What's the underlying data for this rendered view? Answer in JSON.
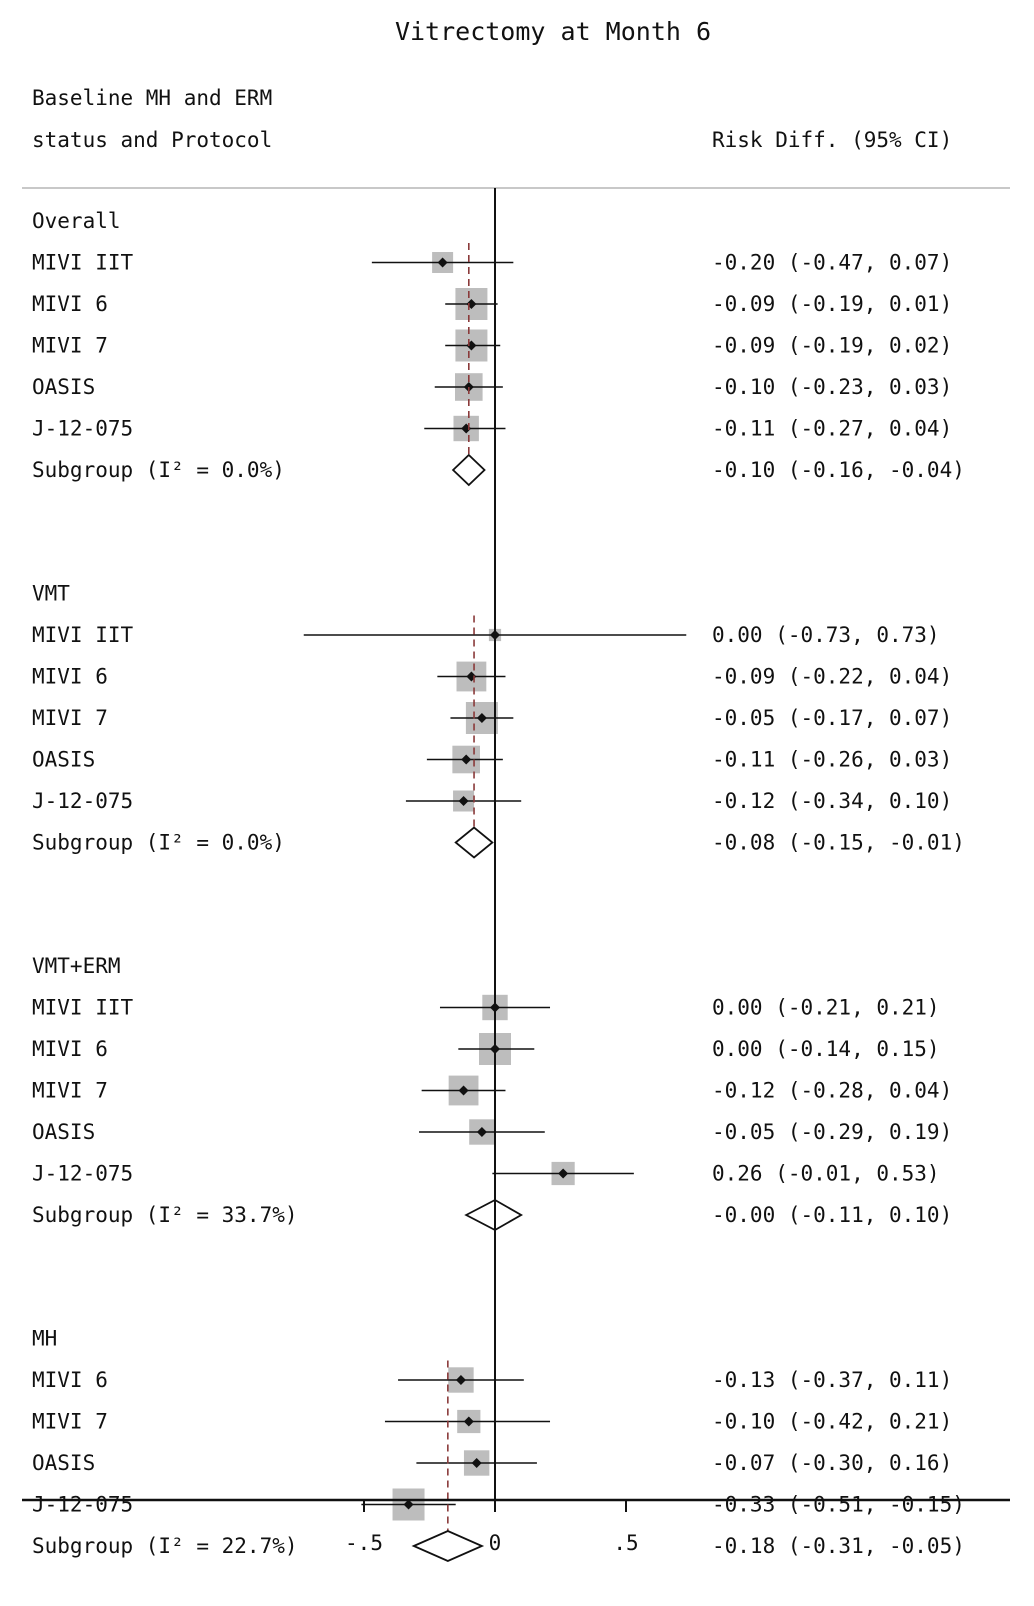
{
  "chart_data": {
    "type": "forest",
    "title": "Vitrectomy at Month 6",
    "left_header": [
      "Baseline MH and ERM",
      "status and Protocol"
    ],
    "right_header": "Risk Diff. (95% CI)",
    "xlim": [
      -0.75,
      0.75
    ],
    "x_ticks": [
      {
        "value": -0.5,
        "label": "-.5"
      },
      {
        "value": 0,
        "label": "0"
      },
      {
        "value": 0.5,
        "label": ".5"
      }
    ],
    "reference_line": 0,
    "groups": [
      {
        "name": "Overall",
        "pooled": -0.1,
        "studies": [
          {
            "label": "MIVI IIT",
            "estimate": -0.2,
            "lower": -0.47,
            "upper": 0.07,
            "weight": 0.5,
            "ci_text": "-0.20 (-0.47, 0.07)"
          },
          {
            "label": "MIVI 6",
            "estimate": -0.09,
            "lower": -0.19,
            "upper": 0.01,
            "weight": 1.0,
            "ci_text": "-0.09 (-0.19, 0.01)"
          },
          {
            "label": "MIVI 7",
            "estimate": -0.09,
            "lower": -0.19,
            "upper": 0.02,
            "weight": 1.0,
            "ci_text": "-0.09 (-0.19, 0.02)"
          },
          {
            "label": "OASIS",
            "estimate": -0.1,
            "lower": -0.23,
            "upper": 0.03,
            "weight": 0.8,
            "ci_text": "-0.10 (-0.23, 0.03)"
          },
          {
            "label": "J-12-075",
            "estimate": -0.11,
            "lower": -0.27,
            "upper": 0.04,
            "weight": 0.7,
            "ci_text": "-0.11 (-0.27, 0.04)"
          }
        ],
        "subgroup": {
          "label": "Subgroup (I² = 0.0%)",
          "estimate": -0.1,
          "lower": -0.16,
          "upper": -0.04,
          "ci_text": "-0.10 (-0.16, -0.04)"
        }
      },
      {
        "name": "VMT",
        "pooled": -0.08,
        "studies": [
          {
            "label": "MIVI IIT",
            "estimate": 0.0,
            "lower": -0.73,
            "upper": 0.73,
            "weight": 0.1,
            "ci_text": "0.00 (-0.73, 0.73)"
          },
          {
            "label": "MIVI 6",
            "estimate": -0.09,
            "lower": -0.22,
            "upper": 0.04,
            "weight": 0.9,
            "ci_text": "-0.09 (-0.22, 0.04)"
          },
          {
            "label": "MIVI 7",
            "estimate": -0.05,
            "lower": -0.17,
            "upper": 0.07,
            "weight": 1.0,
            "ci_text": "-0.05 (-0.17, 0.07)"
          },
          {
            "label": "OASIS",
            "estimate": -0.11,
            "lower": -0.26,
            "upper": 0.03,
            "weight": 0.8,
            "ci_text": "-0.11 (-0.26, 0.03)"
          },
          {
            "label": "J-12-075",
            "estimate": -0.12,
            "lower": -0.34,
            "upper": 0.1,
            "weight": 0.5,
            "ci_text": "-0.12 (-0.34, 0.10)"
          }
        ],
        "subgroup": {
          "label": "Subgroup (I² = 0.0%)",
          "estimate": -0.08,
          "lower": -0.15,
          "upper": -0.01,
          "ci_text": "-0.08 (-0.15, -0.01)"
        }
      },
      {
        "name": "VMT+ERM",
        "pooled": -0.0,
        "studies": [
          {
            "label": "MIVI IIT",
            "estimate": 0.0,
            "lower": -0.21,
            "upper": 0.21,
            "weight": 0.7,
            "ci_text": "0.00 (-0.21, 0.21)"
          },
          {
            "label": "MIVI 6",
            "estimate": 0.0,
            "lower": -0.14,
            "upper": 0.15,
            "weight": 1.0,
            "ci_text": "0.00 (-0.14, 0.15)"
          },
          {
            "label": "MIVI 7",
            "estimate": -0.12,
            "lower": -0.28,
            "upper": 0.04,
            "weight": 0.9,
            "ci_text": "-0.12 (-0.28, 0.04)"
          },
          {
            "label": "OASIS",
            "estimate": -0.05,
            "lower": -0.29,
            "upper": 0.19,
            "weight": 0.7,
            "ci_text": "-0.05 (-0.29, 0.19)"
          },
          {
            "label": "J-12-075",
            "estimate": 0.26,
            "lower": -0.01,
            "upper": 0.53,
            "weight": 0.6,
            "ci_text": "0.26 (-0.01, 0.53)"
          }
        ],
        "subgroup": {
          "label": "Subgroup (I² = 33.7%)",
          "estimate": -0.0,
          "lower": -0.11,
          "upper": 0.1,
          "ci_text": "-0.00 (-0.11, 0.10)"
        }
      },
      {
        "name": "MH",
        "pooled": -0.18,
        "studies": [
          {
            "label": "MIVI 6",
            "estimate": -0.13,
            "lower": -0.37,
            "upper": 0.11,
            "weight": 0.7,
            "ci_text": "-0.13 (-0.37, 0.11)"
          },
          {
            "label": "MIVI 7",
            "estimate": -0.1,
            "lower": -0.42,
            "upper": 0.21,
            "weight": 0.6,
            "ci_text": "-0.10 (-0.42, 0.21)"
          },
          {
            "label": "OASIS",
            "estimate": -0.07,
            "lower": -0.3,
            "upper": 0.16,
            "weight": 0.7,
            "ci_text": "-0.07 (-0.30, 0.16)"
          },
          {
            "label": "J-12-075",
            "estimate": -0.33,
            "lower": -0.51,
            "upper": -0.15,
            "weight": 1.0,
            "ci_text": "-0.33 (-0.51, -0.15)"
          }
        ],
        "subgroup": {
          "label": "Subgroup (I² = 22.7%)",
          "estimate": -0.18,
          "lower": -0.31,
          "upper": -0.05,
          "ci_text": "-0.18 (-0.31, -0.05)"
        }
      }
    ],
    "colors": {
      "text": "#111111",
      "weight_box": "#bdbdbd",
      "pooled_line": "#8a3a3a",
      "separator": "#c8c8c8"
    }
  }
}
